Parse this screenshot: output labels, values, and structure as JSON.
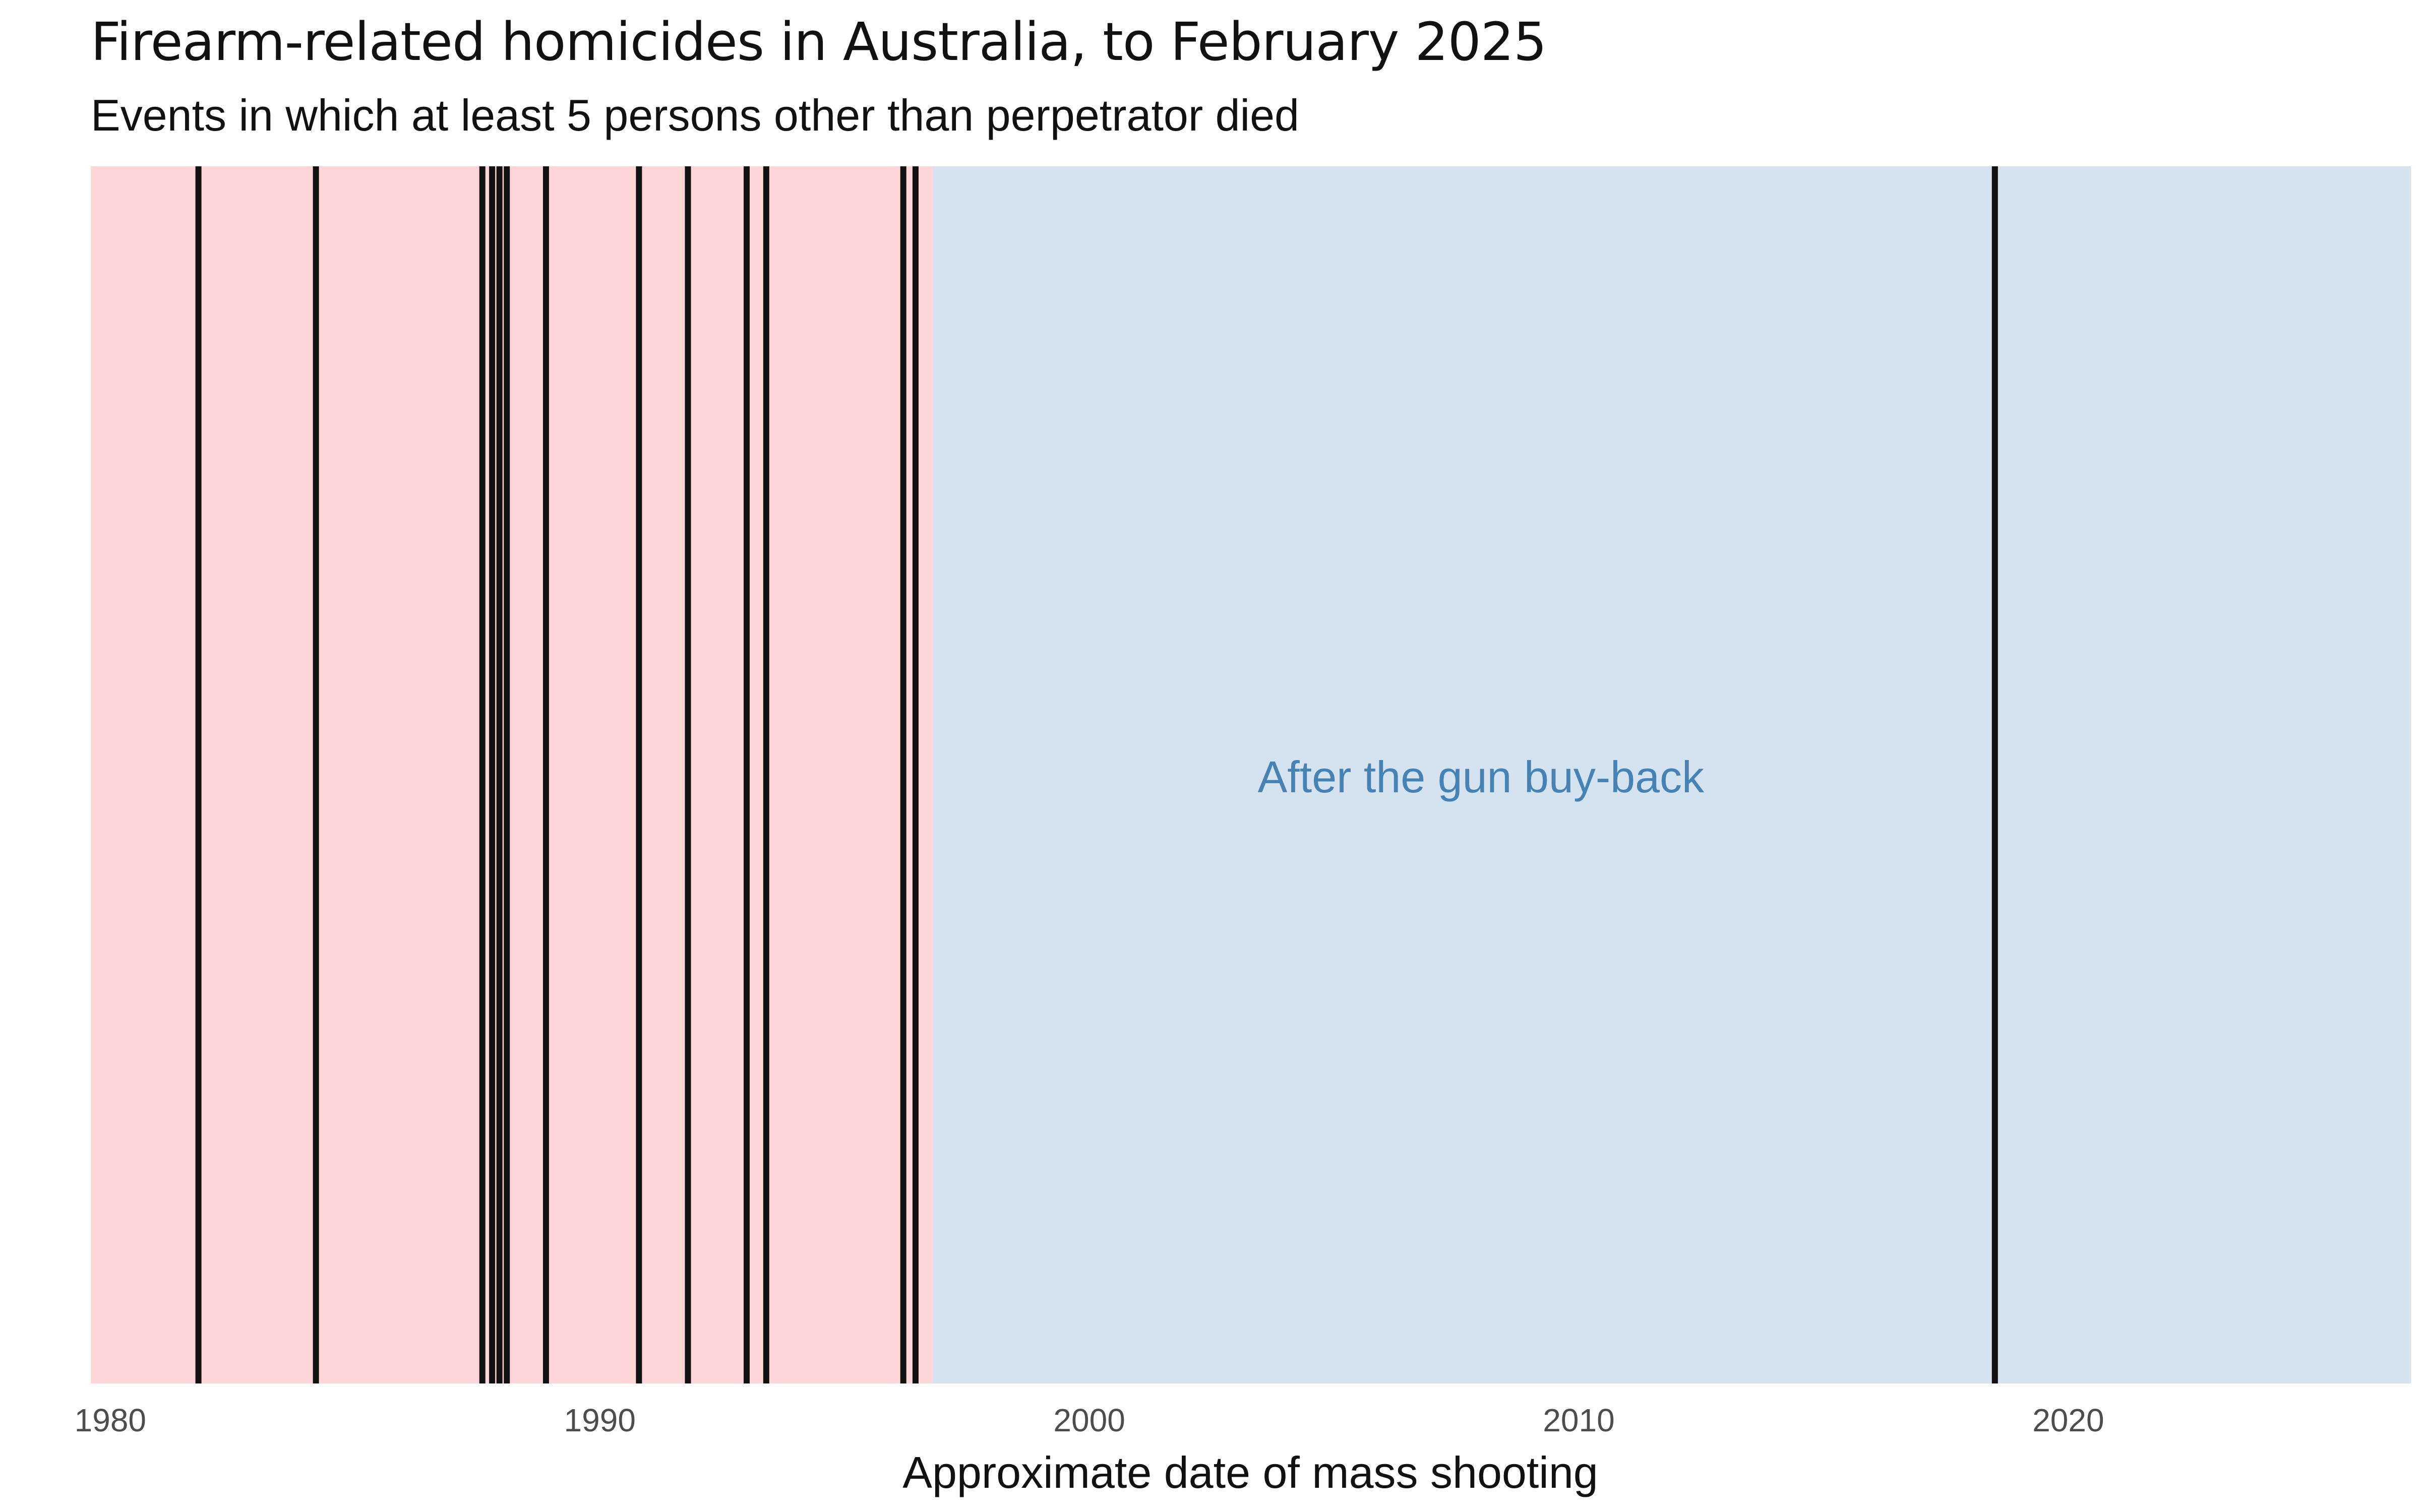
{
  "chart_data": {
    "type": "event-strip",
    "title": "Firearm-related homicides in Australia, to February 2025",
    "subtitle": "Events in which at least 5 persons other than perpetrator died",
    "xlabel": "Approximate date of mass shooting",
    "xlim": [
      1979.6,
      2027.0
    ],
    "x_ticks": [
      1980,
      1990,
      2000,
      2010,
      2020
    ],
    "grid": false,
    "regions": [
      {
        "start": 1979.6,
        "end": 1996.8,
        "color": "#ffd6d7",
        "label": ""
      },
      {
        "start": 1996.8,
        "end": 2027.0,
        "color": "#d5e3f0",
        "label": "After the gun buy-back",
        "label_color": "#4682b4"
      }
    ],
    "events": [
      1981.8,
      1984.2,
      1987.6,
      1987.8,
      1987.95,
      1988.1,
      1988.9,
      1990.8,
      1991.8,
      1993.0,
      1993.4,
      1996.2,
      1996.45,
      2018.5
    ],
    "event_color": "#111111"
  }
}
